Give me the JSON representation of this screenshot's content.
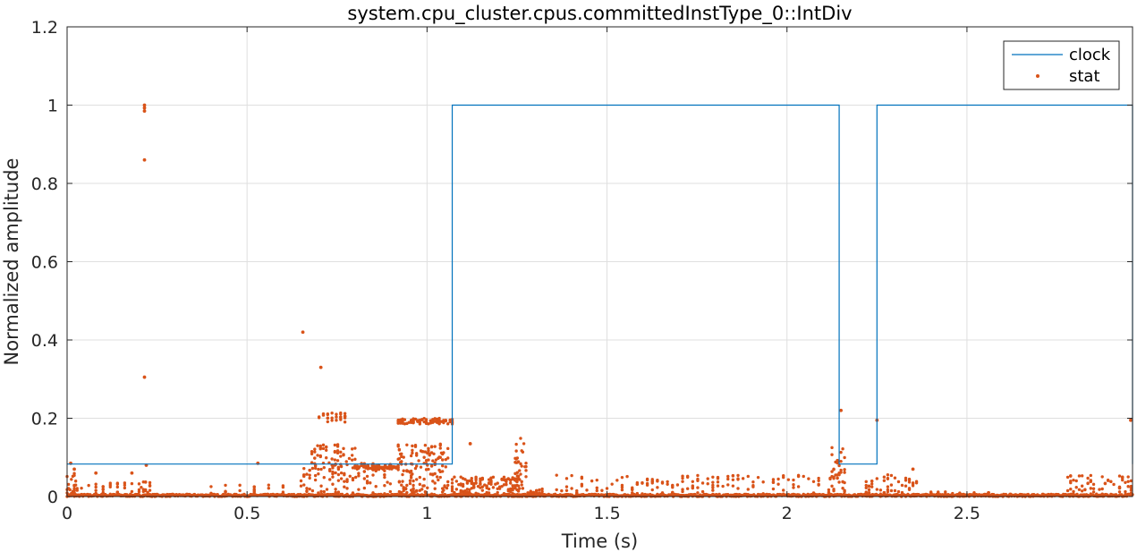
{
  "chart_data": {
    "type": "line",
    "title": "system.cpu_cluster.cpus.committedInstType_0::IntDiv",
    "xlabel": "Time (s)",
    "ylabel": "Normalized amplitude",
    "xlim": [
      0,
      2.96
    ],
    "ylim": [
      0,
      1.2
    ],
    "xticks": [
      0,
      0.5,
      1,
      1.5,
      2,
      2.5
    ],
    "xtick_labels": [
      "0",
      "0.5",
      "1",
      "1.5",
      "2",
      "2.5"
    ],
    "yticks": [
      0,
      0.2,
      0.4,
      0.6,
      0.8,
      1,
      1.2
    ],
    "ytick_labels": [
      "0",
      "0.2",
      "0.4",
      "0.6",
      "0.8",
      "1",
      "1.2"
    ],
    "grid": true,
    "legend_position": "top-right",
    "colors": {
      "clock": "#0072BD",
      "stat": "#D95319",
      "grid": "#dfdfdf",
      "axis": "#262626"
    },
    "series": [
      {
        "name": "clock",
        "style": "step-line",
        "x": [
          0,
          1.07,
          1.07,
          2.145,
          2.145,
          2.25,
          2.25,
          2.96,
          2.96
        ],
        "y": [
          0.083,
          0.083,
          1.0,
          1.0,
          0.083,
          0.083,
          1.0,
          1.0,
          0.083
        ]
      },
      {
        "name": "stat",
        "style": "markers",
        "isolated_points": [
          [
            0.215,
            1.0
          ],
          [
            0.215,
            0.993
          ],
          [
            0.215,
            0.985
          ],
          [
            0.215,
            0.86
          ],
          [
            0.215,
            0.305
          ],
          [
            0.655,
            0.42
          ],
          [
            0.705,
            0.33
          ],
          [
            0.53,
            0.085
          ],
          [
            0.08,
            0.06
          ],
          [
            0.18,
            0.06
          ],
          [
            0.01,
            0.085
          ],
          [
            0.02,
            0.07
          ],
          [
            2.15,
            0.22
          ],
          [
            2.25,
            0.195
          ],
          [
            2.955,
            0.195
          ],
          [
            1.12,
            0.135
          ],
          [
            2.35,
            0.07
          ],
          [
            0.22,
            0.08
          ]
        ],
        "dense_regions": [
          {
            "x": [
              0.0,
              2.96
            ],
            "y": [
              0.0,
              0.006
            ],
            "step": 0.002
          },
          {
            "x": [
              0.0,
              0.03
            ],
            "y": [
              0.0,
              0.06
            ],
            "step": 0.004
          },
          {
            "x": [
              0.02,
              0.2
            ],
            "y": [
              0.0,
              0.035
            ],
            "step": 0.02
          },
          {
            "x": [
              0.2,
              0.23
            ],
            "y": [
              0.0,
              0.045
            ],
            "step": 0.006
          },
          {
            "x": [
              0.4,
              0.6
            ],
            "y": [
              0.0,
              0.03
            ],
            "step": 0.04
          },
          {
            "x": [
              0.65,
              0.9
            ],
            "y": [
              0.0,
              0.085
            ],
            "step": 0.008
          },
          {
            "x": [
              0.68,
              0.8
            ],
            "y": [
              0.08,
              0.135
            ],
            "step": 0.008
          },
          {
            "x": [
              0.7,
              0.78
            ],
            "y": [
              0.19,
              0.215
            ],
            "step": 0.012
          },
          {
            "x": [
              0.8,
              0.92
            ],
            "y": [
              0.07,
              0.08
            ],
            "step": 0.006
          },
          {
            "x": [
              0.92,
              1.06
            ],
            "y": [
              0.0,
              0.135
            ],
            "step": 0.003
          },
          {
            "x": [
              0.92,
              1.07
            ],
            "y": [
              0.185,
              0.2
            ],
            "step": 0.006
          },
          {
            "x": [
              1.07,
              1.25
            ],
            "y": [
              0.0,
              0.05
            ],
            "step": 0.006
          },
          {
            "x": [
              1.245,
              1.275
            ],
            "y": [
              0.0,
              0.15
            ],
            "step": 0.003
          },
          {
            "x": [
              1.28,
              1.32
            ],
            "y": [
              0.0,
              0.02
            ],
            "step": 0.008
          },
          {
            "x": [
              1.36,
              2.13
            ],
            "y": [
              0.0,
              0.055
            ],
            "step": 0.014
          },
          {
            "x": [
              2.12,
              2.16
            ],
            "y": [
              0.0,
              0.13
            ],
            "step": 0.005
          },
          {
            "x": [
              2.22,
              2.24
            ],
            "y": [
              0.0,
              0.04
            ],
            "step": 0.008
          },
          {
            "x": [
              2.25,
              2.36
            ],
            "y": [
              0.0,
              0.06
            ],
            "step": 0.01
          },
          {
            "x": [
              2.36,
              2.56
            ],
            "y": [
              0.0,
              0.012
            ],
            "step": 0.02
          },
          {
            "x": [
              2.78,
              2.96
            ],
            "y": [
              0.0,
              0.055
            ],
            "step": 0.008
          }
        ]
      }
    ]
  }
}
